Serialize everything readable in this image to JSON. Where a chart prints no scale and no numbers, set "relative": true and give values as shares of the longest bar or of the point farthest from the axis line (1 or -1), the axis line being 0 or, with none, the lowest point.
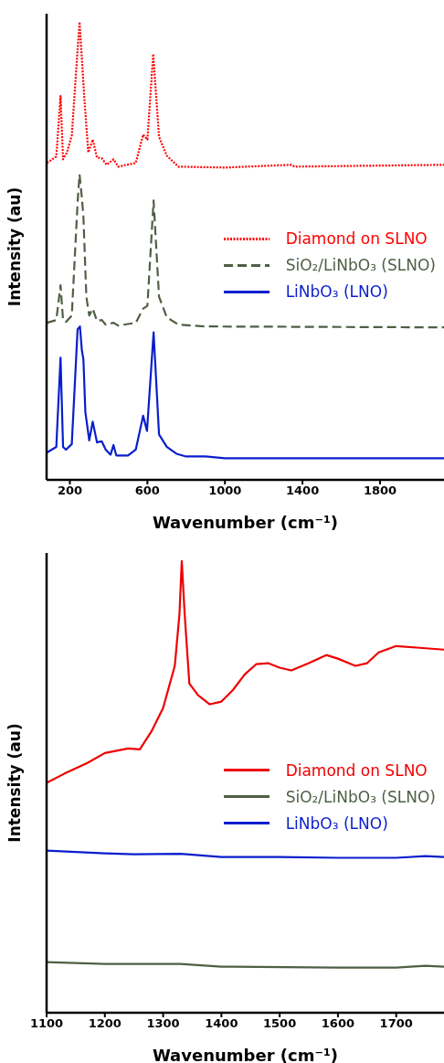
{
  "chart_data": [
    {
      "type": "line",
      "relative": true,
      "xlabel": "Wavenumber (cm⁻¹)",
      "ylabel": "Intensity (au)",
      "xlim": [
        80,
        2130
      ],
      "xticks": [
        200,
        600,
        1000,
        1400,
        1800
      ],
      "legend": "center right",
      "grid": false,
      "marker": "none",
      "series": [
        {
          "name": "Diamond on SLNO",
          "color": "#ff0000",
          "line_style": "dotted",
          "x": [
            82,
            130,
            152,
            165,
            185,
            210,
            240,
            250,
            262,
            275,
            295,
            318,
            340,
            365,
            390,
            425,
            450,
            540,
            578,
            600,
            630,
            660,
            700,
            760,
            1000,
            1340,
            1360,
            2130
          ],
          "values": [
            0.692,
            0.706,
            0.838,
            0.7,
            0.715,
            0.752,
            0.94,
            1.0,
            0.92,
            0.832,
            0.715,
            0.743,
            0.704,
            0.702,
            0.688,
            0.7,
            0.684,
            0.692,
            0.754,
            0.743,
            0.93,
            0.749,
            0.708,
            0.684,
            0.682,
            0.688,
            0.684,
            0.688
          ]
        },
        {
          "name": "SiO₂/LiNbO₃ (SLNO)",
          "color": "#4f5f45",
          "line_style": "dashed",
          "x": [
            82,
            130,
            152,
            165,
            180,
            210,
            240,
            250,
            262,
            270,
            285,
            300,
            318,
            340,
            365,
            385,
            425,
            450,
            540,
            578,
            600,
            632,
            660,
            700,
            760,
            900,
            2130
          ],
          "values": [
            0.343,
            0.349,
            0.425,
            0.349,
            0.345,
            0.359,
            0.606,
            0.667,
            0.616,
            0.575,
            0.4,
            0.359,
            0.374,
            0.347,
            0.349,
            0.339,
            0.343,
            0.337,
            0.343,
            0.374,
            0.38,
            0.61,
            0.4,
            0.355,
            0.339,
            0.335,
            0.333
          ]
        },
        {
          "name": "LiNbO₃ (LNO)",
          "color": "#0a1ecc",
          "line_style": "solid",
          "x": [
            82,
            130,
            152,
            165,
            180,
            210,
            240,
            252,
            262,
            270,
            280,
            300,
            318,
            340,
            365,
            385,
            410,
            425,
            440,
            500,
            540,
            578,
            598,
            632,
            660,
            700,
            750,
            800,
            900,
            1000,
            2130
          ],
          "values": [
            0.06,
            0.072,
            0.267,
            0.072,
            0.066,
            0.078,
            0.329,
            0.335,
            0.283,
            0.263,
            0.148,
            0.086,
            0.127,
            0.082,
            0.084,
            0.066,
            0.055,
            0.076,
            0.053,
            0.053,
            0.066,
            0.14,
            0.107,
            0.322,
            0.099,
            0.072,
            0.057,
            0.051,
            0.051,
            0.047,
            0.047
          ]
        }
      ]
    },
    {
      "type": "line",
      "relative": true,
      "xlabel": "Wavenumber (cm⁻¹)",
      "ylabel": "Intensity (au)",
      "xlim": [
        1100,
        1782
      ],
      "xticks": [
        1100,
        1200,
        1300,
        1400,
        1500,
        1600,
        1700
      ],
      "legend": "center right",
      "grid": false,
      "marker": "none",
      "line_style": "solid",
      "series": [
        {
          "name": "Diamond on SLNO",
          "color": "#ee0000",
          "x": [
            1100,
            1130,
            1170,
            1200,
            1240,
            1260,
            1280,
            1300,
            1320,
            1328,
            1332,
            1337,
            1345,
            1360,
            1380,
            1400,
            1420,
            1440,
            1460,
            1480,
            1500,
            1520,
            1550,
            1580,
            1600,
            1630,
            1650,
            1670,
            1700,
            1740,
            1782
          ],
          "values": [
            0.509,
            0.529,
            0.553,
            0.575,
            0.585,
            0.583,
            0.623,
            0.675,
            0.768,
            0.882,
            1.0,
            0.882,
            0.729,
            0.703,
            0.683,
            0.689,
            0.715,
            0.749,
            0.772,
            0.774,
            0.764,
            0.758,
            0.774,
            0.792,
            0.784,
            0.768,
            0.774,
            0.798,
            0.812,
            0.808,
            0.804
          ]
        },
        {
          "name": "SiO₂/LiNbO₃ (SLNO)",
          "color": "#4f5f45",
          "x": [
            1100,
            1200,
            1330,
            1400,
            1600,
            1700,
            1750,
            1782
          ],
          "values": [
            0.112,
            0.108,
            0.108,
            0.102,
            0.1,
            0.1,
            0.104,
            0.102
          ]
        },
        {
          "name": "LiNbO₃ (LNO)",
          "color": "#0a1ecc",
          "x": [
            1100,
            1200,
            1250,
            1330,
            1400,
            1500,
            1600,
            1700,
            1750,
            1782
          ],
          "values": [
            0.359,
            0.353,
            0.351,
            0.352,
            0.345,
            0.345,
            0.343,
            0.343,
            0.347,
            0.345
          ]
        }
      ]
    }
  ]
}
